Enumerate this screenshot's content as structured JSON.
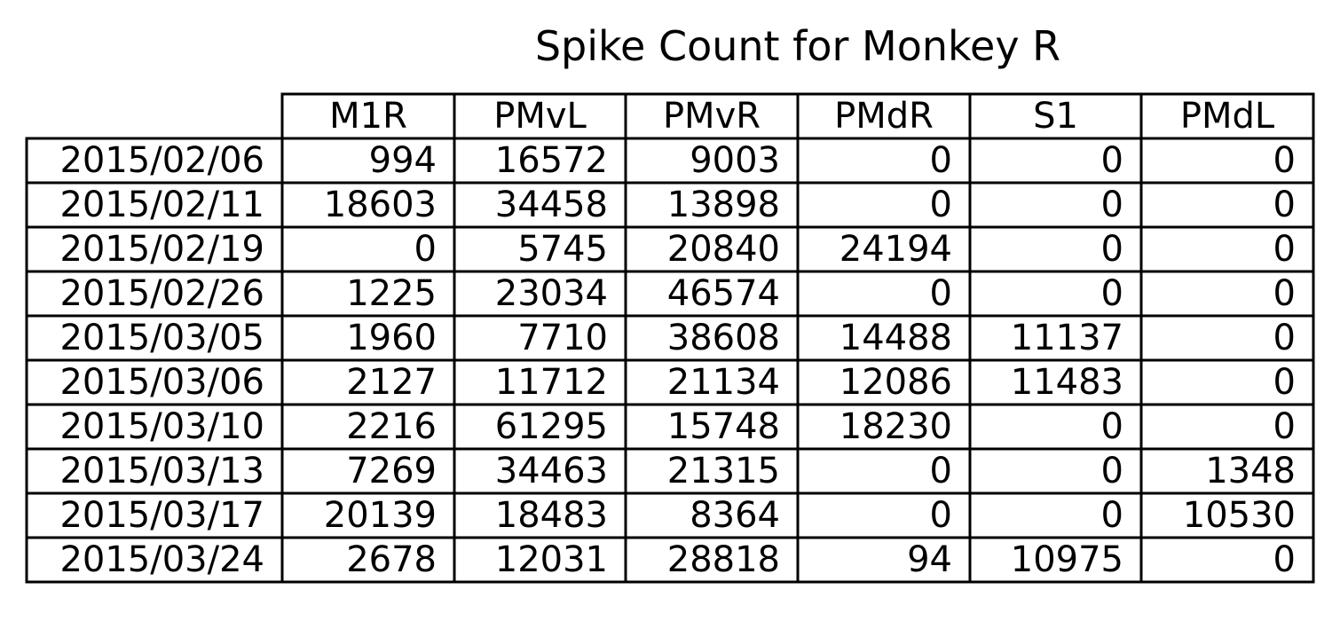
{
  "chart_data": {
    "type": "table",
    "title": "Spike Count for Monkey R",
    "columns": [
      "M1R",
      "PMvL",
      "PMvR",
      "PMdR",
      "S1",
      "PMdL"
    ],
    "rows": [
      {
        "label": "2015/02/06",
        "values": [
          994,
          16572,
          9003,
          0,
          0,
          0
        ]
      },
      {
        "label": "2015/02/11",
        "values": [
          18603,
          34458,
          13898,
          0,
          0,
          0
        ]
      },
      {
        "label": "2015/02/19",
        "values": [
          0,
          5745,
          20840,
          24194,
          0,
          0
        ]
      },
      {
        "label": "2015/02/26",
        "values": [
          1225,
          23034,
          46574,
          0,
          0,
          0
        ]
      },
      {
        "label": "2015/03/05",
        "values": [
          1960,
          7710,
          38608,
          14488,
          11137,
          0
        ]
      },
      {
        "label": "2015/03/06",
        "values": [
          2127,
          11712,
          21134,
          12086,
          11483,
          0
        ]
      },
      {
        "label": "2015/03/10",
        "values": [
          2216,
          61295,
          15748,
          18230,
          0,
          0
        ]
      },
      {
        "label": "2015/03/13",
        "values": [
          7269,
          34463,
          21315,
          0,
          0,
          1348
        ]
      },
      {
        "label": "2015/03/17",
        "values": [
          20139,
          18483,
          8364,
          0,
          0,
          10530
        ]
      },
      {
        "label": "2015/03/24",
        "values": [
          2678,
          12031,
          28818,
          94,
          10975,
          0
        ]
      }
    ]
  }
}
